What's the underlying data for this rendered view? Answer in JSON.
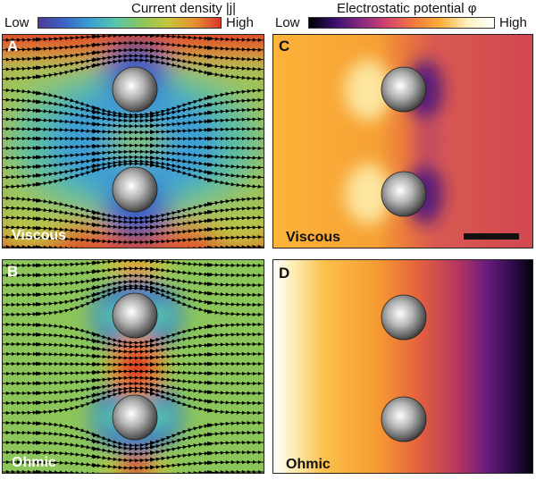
{
  "colorbars": {
    "current": {
      "title": "Current density |j|",
      "low": "Low",
      "high": "High"
    },
    "potential": {
      "title": "Electrostatic potential φ",
      "low": "Low",
      "high": "High"
    }
  },
  "panels": {
    "A": {
      "letter": "A",
      "regime": "Viscous"
    },
    "B": {
      "letter": "B",
      "regime": "Ohmic"
    },
    "C": {
      "letter": "C",
      "regime": "Viscous"
    },
    "D": {
      "letter": "D",
      "regime": "Ohmic"
    }
  },
  "colors": {
    "jet": [
      "#4a3b98",
      "#3b64c8",
      "#3aa0d2",
      "#59c6a8",
      "#8cc65a",
      "#c6c43c",
      "#e8902e",
      "#d9362a"
    ],
    "inferno": [
      "#000004",
      "#3b0f70",
      "#8c2981",
      "#d6456c",
      "#f47b3c",
      "#fbb13a",
      "#fcf1c0",
      "#ffffff"
    ]
  }
}
